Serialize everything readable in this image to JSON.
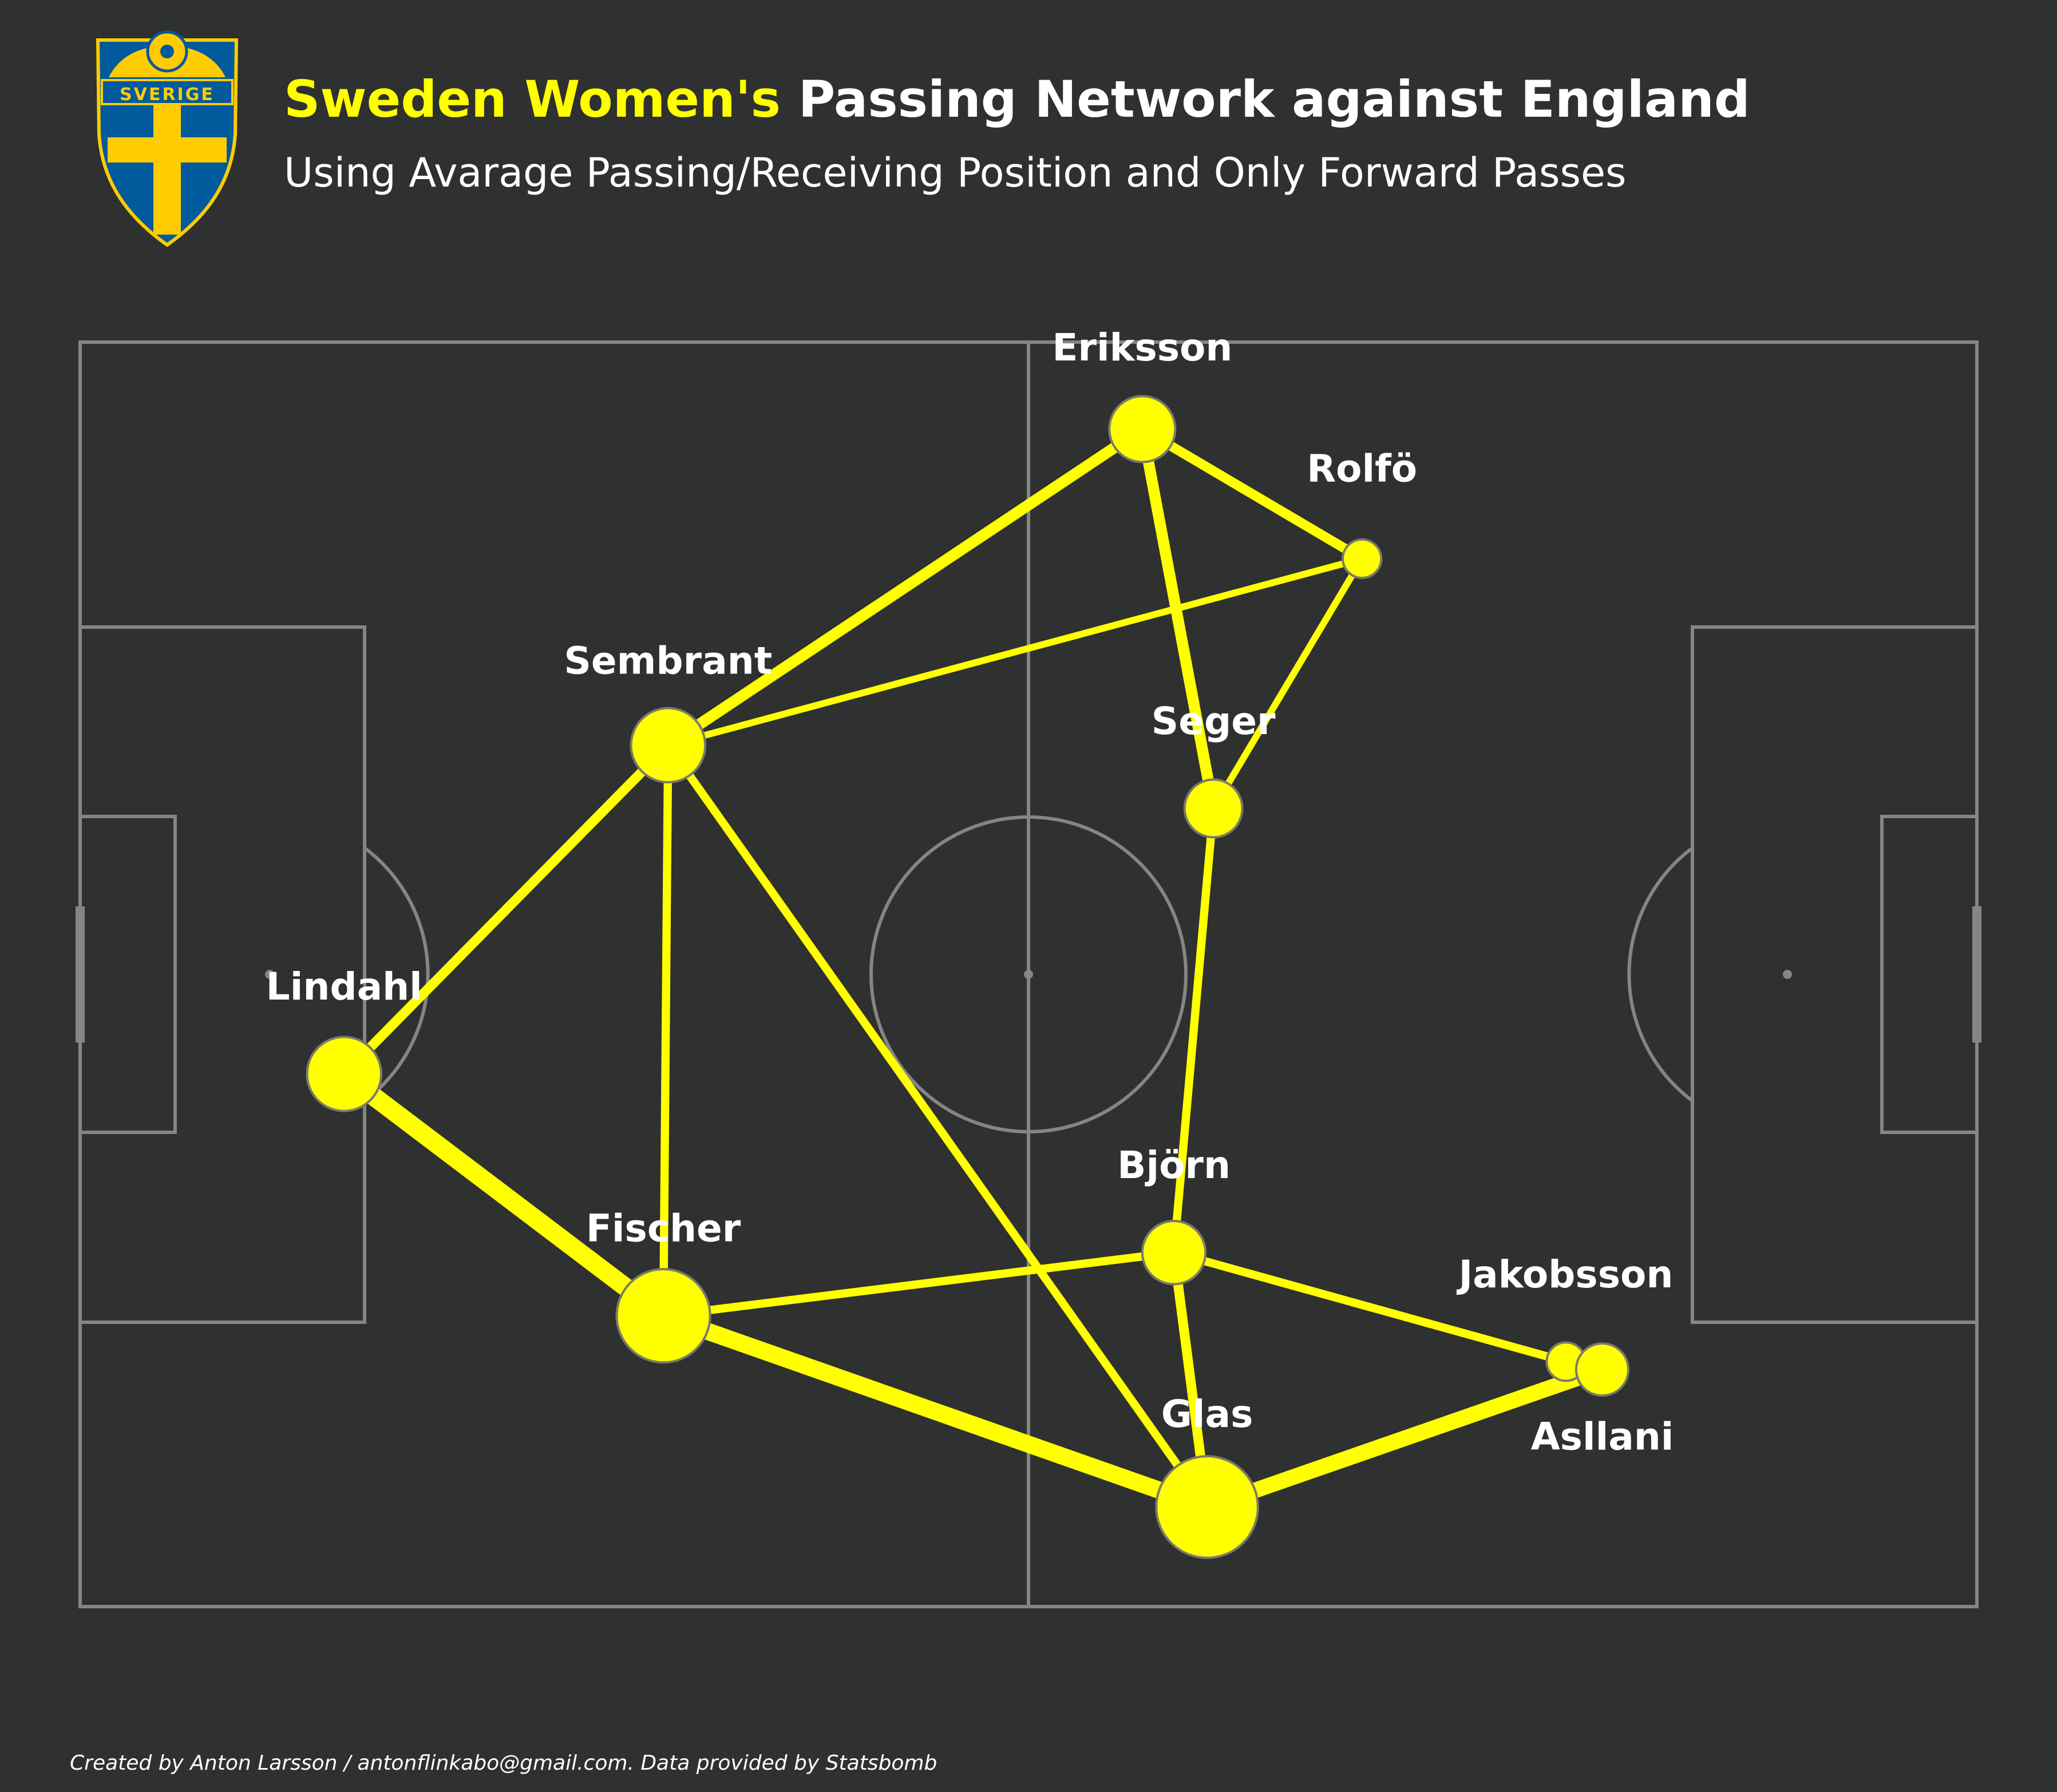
{
  "title": {
    "team": "Sweden Women's",
    "rest": " Passing Network against England",
    "subtitle": "Using Avarage Passing/Receiving Position and Only Forward Passes"
  },
  "badge": {
    "text": "SVERIGE",
    "colors": {
      "blue": "#005a9c",
      "yellow": "#fecc00"
    }
  },
  "footer": "Created by Anton Larsson / antonflinkabo@gmail.com. Data provided by Statsbomb",
  "colors": {
    "background": "#2f3030",
    "pitch_lines": "#858585",
    "node_fill": "#ffff00",
    "edge": "#ffff00",
    "team_highlight": "#ffff00",
    "text": "#ffffff"
  },
  "chart_data": {
    "type": "network",
    "pitch": {
      "length": 120,
      "width": 80
    },
    "players": [
      {
        "id": "eriksson",
        "name": "Eriksson",
        "x": 67.2,
        "y": 5.5,
        "size": 14
      },
      {
        "id": "rolfo",
        "name": "Rolfö",
        "x": 81.1,
        "y": 13.7,
        "size": 4
      },
      {
        "id": "sembrant",
        "name": "Sembrant",
        "x": 37.2,
        "y": 25.5,
        "size": 17
      },
      {
        "id": "seger",
        "name": "Seger",
        "x": 71.7,
        "y": 29.5,
        "size": 11
      },
      {
        "id": "lindahl",
        "name": "Lindahl",
        "x": 16.7,
        "y": 46.3,
        "size": 17
      },
      {
        "id": "bjorn",
        "name": "Björn",
        "x": 69.2,
        "y": 57.6,
        "size": 13
      },
      {
        "id": "fischer",
        "name": "Fischer",
        "x": 36.9,
        "y": 61.6,
        "size": 24
      },
      {
        "id": "jakobsson",
        "name": "Jakobsson",
        "x": 94.0,
        "y": 64.5,
        "size": 4
      },
      {
        "id": "asllani",
        "name": "Asllani",
        "x": 96.3,
        "y": 65.0,
        "size": 9
      },
      {
        "id": "glas",
        "name": "Glas",
        "x": 71.3,
        "y": 73.7,
        "size": 27
      }
    ],
    "passes": [
      {
        "from": "sembrant",
        "to": "eriksson",
        "count": 6
      },
      {
        "from": "eriksson",
        "to": "rolfo",
        "count": 5
      },
      {
        "from": "eriksson",
        "to": "seger",
        "count": 6
      },
      {
        "from": "sembrant",
        "to": "rolfo",
        "count": 3
      },
      {
        "from": "rolfo",
        "to": "seger",
        "count": 3
      },
      {
        "from": "lindahl",
        "to": "sembrant",
        "count": 5
      },
      {
        "from": "sembrant",
        "to": "fischer",
        "count": 4
      },
      {
        "from": "sembrant",
        "to": "glas",
        "count": 4
      },
      {
        "from": "seger",
        "to": "bjorn",
        "count": 4
      },
      {
        "from": "lindahl",
        "to": "fischer",
        "count": 11
      },
      {
        "from": "fischer",
        "to": "glas",
        "count": 10
      },
      {
        "from": "fischer",
        "to": "bjorn",
        "count": 4
      },
      {
        "from": "bjorn",
        "to": "jakobsson",
        "count": 4
      },
      {
        "from": "bjorn",
        "to": "glas",
        "count": 5
      },
      {
        "from": "glas",
        "to": "asllani",
        "count": 9
      }
    ]
  }
}
